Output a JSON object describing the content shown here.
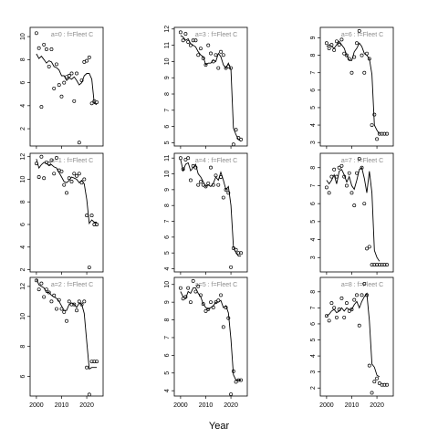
{
  "chart_data": {
    "type": "scatter",
    "xlabel": "Year",
    "x_ticks": [
      2000,
      2010,
      2020
    ],
    "panels": [
      {
        "label": "a=0 : f=Fleet C",
        "x_tick_labels_shown": false,
        "ylim": [
          0.5,
          10.8
        ],
        "y_ticks": [
          2,
          4,
          6,
          8,
          10
        ],
        "observed": {
          "x": [
            2000,
            2001,
            2002,
            2003,
            2004,
            2005,
            2006,
            2007,
            2008,
            2009,
            2010,
            2011,
            2012,
            2013,
            2014,
            2015,
            2016,
            2017,
            2018,
            2019,
            2020,
            2021,
            2022,
            2023,
            2024
          ],
          "y": [
            10.3,
            9.0,
            3.9,
            9.3,
            8.9,
            7.4,
            8.9,
            5.5,
            7.6,
            5.8,
            4.8,
            6.0,
            6.5,
            6.6,
            6.8,
            4.4,
            6.8,
            0.8,
            6.2,
            7.8,
            7.9,
            8.2,
            4.2,
            4.4,
            4.3
          ]
        },
        "fitted": {
          "x": [
            2000,
            2001,
            2002,
            2003,
            2004,
            2005,
            2006,
            2007,
            2008,
            2009,
            2010,
            2011,
            2012,
            2013,
            2014,
            2015,
            2016,
            2017,
            2018,
            2019,
            2020,
            2021,
            2022,
            2023,
            2024
          ],
          "y": [
            8.5,
            8.1,
            8.3,
            8.0,
            7.7,
            7.9,
            7.8,
            7.4,
            7.3,
            7.1,
            6.6,
            6.6,
            6.2,
            6.4,
            6.3,
            6.5,
            6.2,
            5.8,
            6.0,
            6.6,
            6.8,
            6.8,
            6.3,
            4.2,
            4.1
          ]
        }
      },
      {
        "label": "a=3 : f=Fleet C",
        "x_tick_labels_shown": false,
        "ylim": [
          4.8,
          12.1
        ],
        "y_ticks": [
          5,
          6,
          7,
          8,
          9,
          10,
          11,
          12
        ],
        "observed": {
          "x": [
            2000,
            2001,
            2002,
            2003,
            2004,
            2005,
            2006,
            2007,
            2008,
            2009,
            2010,
            2011,
            2012,
            2013,
            2014,
            2015,
            2016,
            2017,
            2018,
            2019,
            2020,
            2021,
            2022,
            2023,
            2024
          ],
          "y": [
            11.8,
            11.3,
            11.7,
            11.2,
            11.0,
            11.3,
            11.3,
            10.4,
            10.8,
            10.2,
            9.8,
            11.0,
            10.5,
            10.0,
            10.4,
            9.6,
            10.6,
            10.4,
            9.6,
            9.7,
            9.6,
            4.9,
            5.8,
            5.3,
            5.2
          ]
        },
        "fitted": {
          "x": [
            2000,
            2001,
            2002,
            2003,
            2004,
            2005,
            2006,
            2007,
            2008,
            2009,
            2010,
            2011,
            2012,
            2013,
            2014,
            2015,
            2016,
            2017,
            2018,
            2019,
            2020,
            2021,
            2022,
            2023,
            2024
          ],
          "y": [
            11.6,
            11.5,
            11.3,
            11.4,
            11.1,
            11.0,
            10.9,
            10.6,
            10.4,
            10.3,
            9.8,
            9.9,
            9.9,
            10.1,
            10.0,
            10.5,
            10.3,
            9.8,
            9.6,
            9.9,
            9.5,
            5.9,
            5.5,
            5.2,
            5.1
          ]
        }
      },
      {
        "label": "a=6 : f=Fleet C",
        "x_tick_labels_shown": false,
        "ylim": [
          2.8,
          9.6
        ],
        "y_ticks": [
          3,
          4,
          5,
          6,
          7,
          8,
          9
        ],
        "observed": {
          "x": [
            2000,
            2001,
            2002,
            2003,
            2004,
            2005,
            2006,
            2007,
            2008,
            2009,
            2010,
            2011,
            2012,
            2013,
            2014,
            2015,
            2016,
            2017,
            2018,
            2019,
            2020,
            2021,
            2022,
            2023,
            2024
          ],
          "y": [
            8.7,
            8.4,
            8.6,
            8.3,
            8.8,
            8.6,
            8.9,
            8.1,
            8.0,
            7.8,
            7.0,
            7.9,
            8.7,
            9.4,
            8.0,
            7.0,
            8.1,
            7.8,
            4.0,
            4.6,
            3.2,
            3.5,
            3.5,
            3.5,
            3.5
          ]
        },
        "fitted": {
          "x": [
            2000,
            2001,
            2002,
            2003,
            2004,
            2005,
            2006,
            2007,
            2008,
            2009,
            2010,
            2011,
            2012,
            2013,
            2014,
            2015,
            2016,
            2017,
            2018,
            2019,
            2020,
            2021
          ],
          "y": [
            8.5,
            8.6,
            8.5,
            8.4,
            8.6,
            8.8,
            8.6,
            8.4,
            8.0,
            7.7,
            7.7,
            8.2,
            8.4,
            8.7,
            8.5,
            8.1,
            8.0,
            7.8,
            6.9,
            4.0,
            3.7,
            3.5
          ]
        }
      },
      {
        "label": "a=1 : f=Fleet C",
        "x_tick_labels_shown": false,
        "ylim": [
          1.8,
          12.3
        ],
        "y_ticks": [
          2,
          4,
          6,
          8,
          10,
          12
        ],
        "observed": {
          "x": [
            2000,
            2001,
            2002,
            2003,
            2004,
            2005,
            2006,
            2007,
            2008,
            2009,
            2010,
            2011,
            2012,
            2013,
            2014,
            2015,
            2016,
            2017,
            2018,
            2019,
            2020,
            2021,
            2022,
            2023,
            2024
          ],
          "y": [
            11.4,
            10.2,
            12.0,
            10.1,
            11.5,
            11.4,
            11.7,
            10.5,
            11.9,
            10.8,
            10.7,
            9.5,
            8.8,
            10.1,
            9.8,
            10.5,
            10.3,
            10.5,
            9.7,
            10.0,
            6.8,
            2.2,
            6.8,
            6.0,
            6.0
          ]
        },
        "fitted": {
          "x": [
            2000,
            2001,
            2002,
            2003,
            2004,
            2005,
            2006,
            2007,
            2008,
            2009,
            2010,
            2011,
            2012,
            2013,
            2014,
            2015,
            2016,
            2017,
            2018,
            2019,
            2020,
            2021,
            2022,
            2023,
            2024
          ],
          "y": [
            11.8,
            11.0,
            11.3,
            11.5,
            11.4,
            11.2,
            11.3,
            11.1,
            11.0,
            10.6,
            10.2,
            9.8,
            9.7,
            9.9,
            10.2,
            10.1,
            10.0,
            9.7,
            9.9,
            9.6,
            8.2,
            6.1,
            6.4,
            6.2,
            6.2
          ]
        }
      },
      {
        "label": "a=4 : f=Fleet C",
        "x_tick_labels_shown": false,
        "ylim": [
          3.8,
          11.3
        ],
        "y_ticks": [
          4,
          5,
          6,
          7,
          8,
          9,
          10,
          11
        ],
        "observed": {
          "x": [
            2000,
            2001,
            2002,
            2003,
            2004,
            2005,
            2006,
            2007,
            2008,
            2009,
            2010,
            2011,
            2012,
            2013,
            2014,
            2015,
            2016,
            2017,
            2018,
            2019,
            2020,
            2021,
            2022,
            2023,
            2024
          ],
          "y": [
            11.0,
            10.3,
            10.9,
            11.0,
            9.6,
            10.5,
            10.4,
            9.3,
            9.5,
            9.3,
            9.2,
            9.4,
            10.4,
            9.3,
            9.9,
            9.3,
            9.8,
            8.5,
            9.0,
            8.8,
            4.1,
            5.3,
            5.2,
            5.0,
            5.0
          ]
        },
        "fitted": {
          "x": [
            2000,
            2001,
            2002,
            2003,
            2004,
            2005,
            2006,
            2007,
            2008,
            2009,
            2010,
            2011,
            2012,
            2013,
            2014,
            2015,
            2016,
            2017,
            2018,
            2019,
            2020,
            2021,
            2022,
            2023,
            2024
          ],
          "y": [
            10.9,
            10.2,
            10.6,
            10.7,
            10.2,
            10.4,
            10.6,
            10.0,
            9.8,
            9.5,
            9.2,
            9.3,
            9.2,
            9.4,
            9.8,
            9.6,
            10.1,
            9.6,
            9.0,
            9.2,
            8.0,
            5.4,
            5.0,
            4.8,
            4.8
          ]
        }
      },
      {
        "label": "a=7 : f=Fleet C",
        "x_tick_labels_shown": false,
        "ylim": [
          2.2,
          8.8
        ],
        "y_ticks": [
          3,
          4,
          5,
          6,
          7,
          8
        ],
        "observed": {
          "x": [
            2000,
            2001,
            2002,
            2003,
            2004,
            2005,
            2006,
            2007,
            2008,
            2009,
            2010,
            2011,
            2012,
            2013,
            2014,
            2015,
            2016,
            2017,
            2018,
            2019,
            2020,
            2021,
            2022,
            2023,
            2024
          ],
          "y": [
            6.9,
            6.6,
            7.5,
            7.9,
            7.5,
            8.0,
            8.1,
            7.5,
            7.0,
            7.7,
            6.6,
            5.9,
            7.7,
            8.5,
            8.0,
            6.0,
            3.5,
            3.6,
            2.6,
            2.6,
            2.6,
            2.6,
            2.6,
            2.6,
            2.6
          ]
        },
        "fitted": {
          "x": [
            2000,
            2001,
            2002,
            2003,
            2004,
            2005,
            2006,
            2007,
            2008,
            2009,
            2010,
            2011,
            2012,
            2013,
            2014,
            2015,
            2016,
            2017,
            2018,
            2019,
            2020,
            2021
          ],
          "y": [
            7.3,
            7.1,
            7.3,
            7.6,
            7.1,
            7.8,
            7.9,
            7.6,
            7.2,
            7.5,
            7.0,
            6.8,
            7.3,
            7.9,
            8.0,
            7.4,
            6.6,
            7.8,
            6.6,
            3.4,
            3.0,
            2.8
          ]
        }
      },
      {
        "label": "a=2 : f=Fleet C",
        "x_tick_labels_shown": true,
        "ylim": [
          4.7,
          12.6
        ],
        "y_ticks": [
          6,
          8,
          10,
          12
        ],
        "observed": {
          "x": [
            2000,
            2001,
            2002,
            2003,
            2004,
            2005,
            2006,
            2007,
            2008,
            2009,
            2010,
            2011,
            2012,
            2013,
            2014,
            2015,
            2016,
            2017,
            2018,
            2019,
            2020,
            2021,
            2022,
            2023,
            2024
          ],
          "y": [
            12.4,
            11.8,
            12.2,
            11.3,
            11.8,
            11.6,
            11.0,
            11.4,
            10.5,
            11.1,
            10.5,
            10.3,
            9.7,
            11.0,
            10.8,
            10.8,
            10.4,
            11.0,
            10.8,
            11.0,
            6.6,
            4.8,
            7.0,
            7.0,
            7.0
          ]
        },
        "fitted": {
          "x": [
            2000,
            2001,
            2002,
            2003,
            2004,
            2005,
            2006,
            2007,
            2008,
            2009,
            2010,
            2011,
            2012,
            2013,
            2014,
            2015,
            2016,
            2017,
            2018,
            2019,
            2020,
            2021,
            2022,
            2023,
            2024
          ],
          "y": [
            12.5,
            12.1,
            12.0,
            11.9,
            11.6,
            11.6,
            11.4,
            11.3,
            11.2,
            11.0,
            10.7,
            10.4,
            10.4,
            10.8,
            10.9,
            10.8,
            10.6,
            10.9,
            10.8,
            10.2,
            8.3,
            6.5,
            6.6,
            6.6,
            6.6
          ]
        }
      },
      {
        "label": "a=5 : f=Fleet C",
        "x_tick_labels_shown": true,
        "ylim": [
          3.7,
          10.4
        ],
        "y_ticks": [
          4,
          5,
          6,
          7,
          8,
          9,
          10
        ],
        "observed": {
          "x": [
            2000,
            2001,
            2002,
            2003,
            2004,
            2005,
            2006,
            2007,
            2008,
            2009,
            2010,
            2011,
            2012,
            2013,
            2014,
            2015,
            2016,
            2017,
            2018,
            2019,
            2020,
            2021,
            2022,
            2023,
            2024
          ],
          "y": [
            9.8,
            9.2,
            9.3,
            9.8,
            9.0,
            10.2,
            9.6,
            9.9,
            9.4,
            8.9,
            8.5,
            8.6,
            9.0,
            8.7,
            9.0,
            9.1,
            9.4,
            7.6,
            8.7,
            8.1,
            3.8,
            5.1,
            4.5,
            4.6,
            4.6
          ]
        },
        "fitted": {
          "x": [
            2000,
            2001,
            2002,
            2003,
            2004,
            2005,
            2006,
            2007,
            2008,
            2009,
            2010,
            2011,
            2012,
            2013,
            2014,
            2015,
            2016,
            2017,
            2018,
            2019,
            2020,
            2021,
            2022,
            2023,
            2024
          ],
          "y": [
            9.6,
            9.3,
            9.2,
            9.6,
            9.5,
            9.8,
            9.8,
            9.5,
            9.3,
            8.9,
            8.7,
            8.6,
            8.7,
            8.8,
            9.0,
            9.0,
            9.1,
            8.7,
            8.8,
            8.4,
            6.9,
            4.9,
            4.6,
            4.6,
            4.6
          ]
        }
      },
      {
        "label": "a=8 : f=Fleet C",
        "x_tick_labels_shown": true,
        "ylim": [
          1.5,
          8.9
        ],
        "y_ticks": [
          2,
          3,
          4,
          5,
          6,
          7,
          8
        ],
        "observed": {
          "x": [
            2000,
            2001,
            2002,
            2003,
            2004,
            2005,
            2006,
            2007,
            2008,
            2009,
            2010,
            2011,
            2012,
            2013,
            2014,
            2015,
            2016,
            2017,
            2018,
            2019,
            2020,
            2021,
            2022,
            2023,
            2024
          ],
          "y": [
            6.5,
            6.2,
            7.3,
            7.0,
            6.4,
            6.9,
            7.6,
            6.4,
            7.3,
            6.8,
            6.9,
            7.5,
            7.8,
            5.9,
            7.8,
            8.5,
            7.8,
            3.4,
            1.7,
            2.4,
            2.6,
            2.3,
            2.2,
            2.2,
            2.2
          ]
        },
        "fitted": {
          "x": [
            2000,
            2001,
            2002,
            2003,
            2004,
            2005,
            2006,
            2007,
            2008,
            2009,
            2010,
            2011,
            2012,
            2013,
            2014,
            2015,
            2016,
            2017,
            2018,
            2019,
            2020,
            2021
          ],
          "y": [
            6.5,
            6.6,
            6.8,
            6.9,
            6.7,
            6.8,
            7.0,
            6.8,
            7.0,
            6.9,
            6.9,
            7.2,
            7.4,
            7.0,
            7.4,
            7.7,
            7.9,
            6.2,
            3.5,
            3.3,
            2.8,
            2.7
          ]
        }
      }
    ]
  }
}
